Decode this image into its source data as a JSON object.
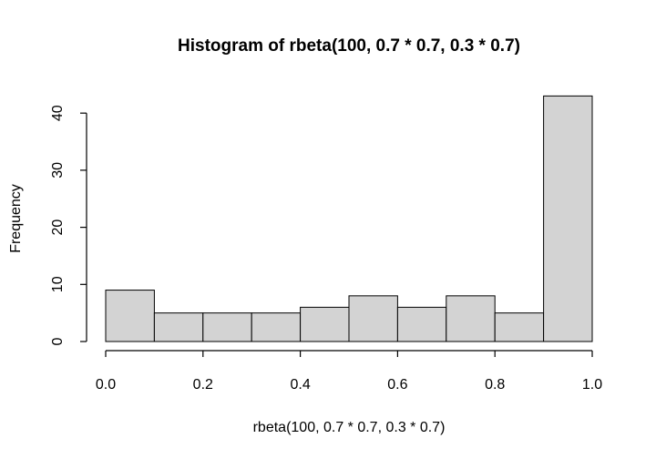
{
  "chart_data": {
    "type": "bar",
    "title": "Histogram of rbeta(100, 0.7 * 0.7, 0.3 * 0.7)",
    "xlabel": "rbeta(100, 0.7 * 0.7, 0.3 * 0.7)",
    "ylabel": "Frequency",
    "bin_edges": [
      0.0,
      0.1,
      0.2,
      0.3,
      0.4,
      0.5,
      0.6,
      0.7,
      0.8,
      0.9,
      1.0
    ],
    "values": [
      9,
      5,
      5,
      5,
      6,
      8,
      6,
      8,
      5,
      43
    ],
    "xlim": [
      0.0,
      1.0
    ],
    "ylim": [
      0,
      43
    ],
    "x_ticks": [
      "0.0",
      "0.2",
      "0.4",
      "0.6",
      "0.8",
      "1.0"
    ],
    "y_ticks": [
      "0",
      "10",
      "20",
      "30",
      "40"
    ],
    "bar_color": "#d3d3d3",
    "grid": false
  }
}
